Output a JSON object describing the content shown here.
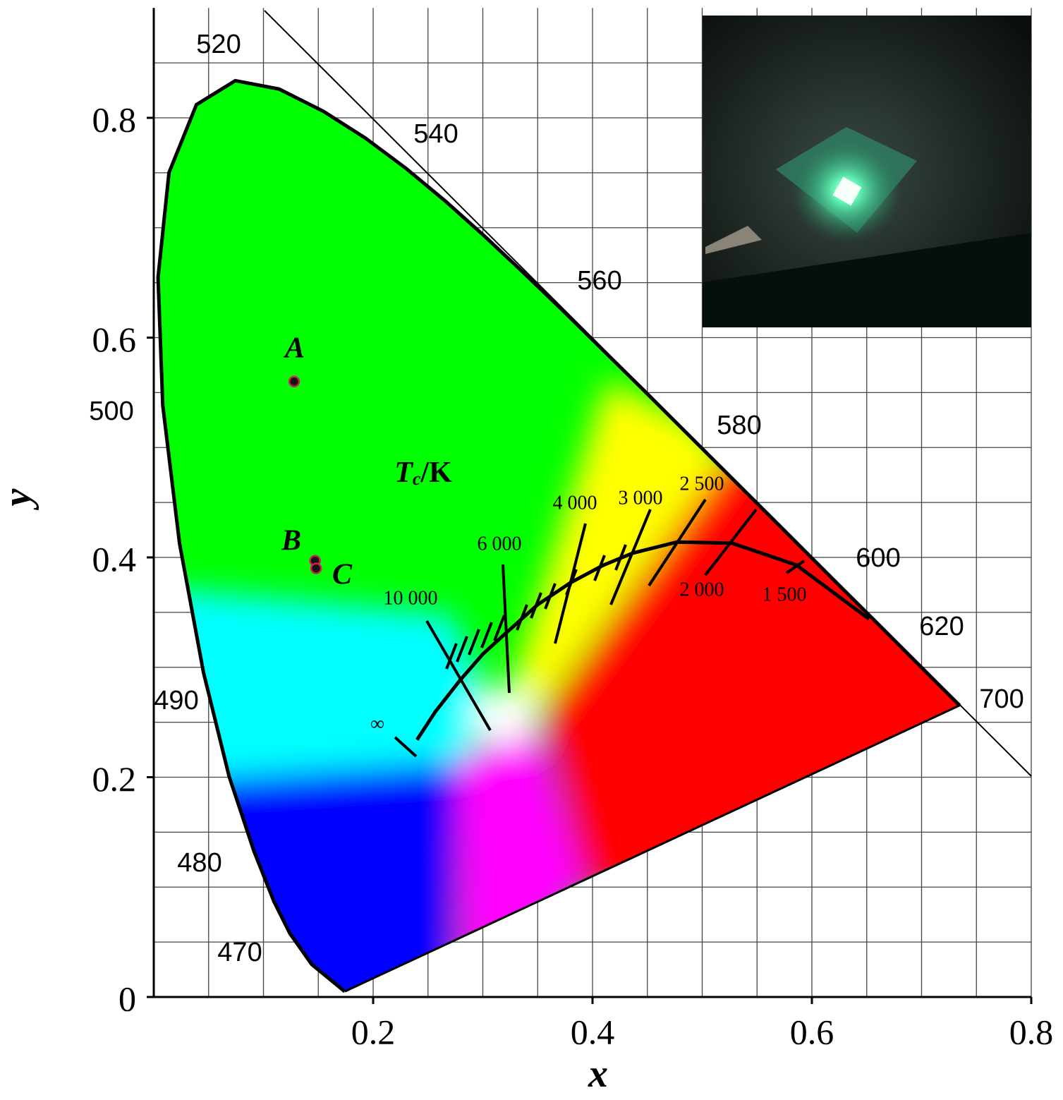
{
  "chart_data": {
    "type": "scatter",
    "xlabel": "x",
    "ylabel": "y",
    "xlim": [
      0,
      0.8
    ],
    "ylim": [
      0,
      0.9
    ],
    "xticks": [
      0.2,
      0.4,
      0.6,
      0.8
    ],
    "yticks": [
      0,
      0.2,
      0.4,
      0.6,
      0.8
    ],
    "grid": true,
    "xgrid": [
      0.05,
      0.1,
      0.15,
      0.2,
      0.25,
      0.3,
      0.35,
      0.4,
      0.45,
      0.5,
      0.55,
      0.6,
      0.65,
      0.7,
      0.75,
      0.8
    ],
    "ygrid": [
      0.05,
      0.1,
      0.15,
      0.2,
      0.25,
      0.3,
      0.35,
      0.4,
      0.45,
      0.5,
      0.55,
      0.6,
      0.65,
      0.7,
      0.75,
      0.8,
      0.85
    ],
    "points": [
      {
        "label": "A",
        "x": 0.128,
        "y": 0.56
      },
      {
        "label": "B",
        "x": 0.147,
        "y": 0.397
      },
      {
        "label": "C",
        "x": 0.148,
        "y": 0.39
      }
    ],
    "point_color": "#d0205a",
    "spectral_locus": {
      "x": [
        0.1741,
        0.144,
        0.1241,
        0.1096,
        0.0913,
        0.0687,
        0.0454,
        0.0235,
        0.0082,
        0.0039,
        0.0139,
        0.0389,
        0.0743,
        0.1142,
        0.1547,
        0.1929,
        0.2296,
        0.2658,
        0.3016,
        0.3373,
        0.3731,
        0.4441,
        0.5125,
        0.5752,
        0.627,
        0.6658,
        0.6915,
        0.719,
        0.7347
      ],
      "y": [
        0.005,
        0.0297,
        0.0578,
        0.0868,
        0.1327,
        0.2007,
        0.295,
        0.4127,
        0.5384,
        0.6548,
        0.7502,
        0.812,
        0.8338,
        0.8262,
        0.8059,
        0.7816,
        0.7543,
        0.7243,
        0.6923,
        0.6589,
        0.6245,
        0.5547,
        0.4866,
        0.4242,
        0.3725,
        0.334,
        0.3083,
        0.2809,
        0.2653
      ]
    },
    "wavelength_labels": [
      "520",
      "540",
      "560",
      "580",
      "600",
      "620",
      "700",
      "500",
      "490",
      "480",
      "470"
    ],
    "planckian_locus": {
      "x": [
        0.24,
        0.257,
        0.279,
        0.3,
        0.322,
        0.35,
        0.38,
        0.41,
        0.437,
        0.477,
        0.527,
        0.586,
        0.652
      ],
      "y": [
        0.234,
        0.26,
        0.288,
        0.312,
        0.332,
        0.357,
        0.377,
        0.393,
        0.404,
        0.414,
        0.413,
        0.393,
        0.344
      ]
    },
    "temperature_title": {
      "main": "T",
      "sub": "c",
      "unit": "/K"
    },
    "temperature_labels": [
      "10 000",
      "6 000",
      "4 000",
      "3 000",
      "2 500",
      "2 000",
      "1 500",
      "∞"
    ]
  }
}
